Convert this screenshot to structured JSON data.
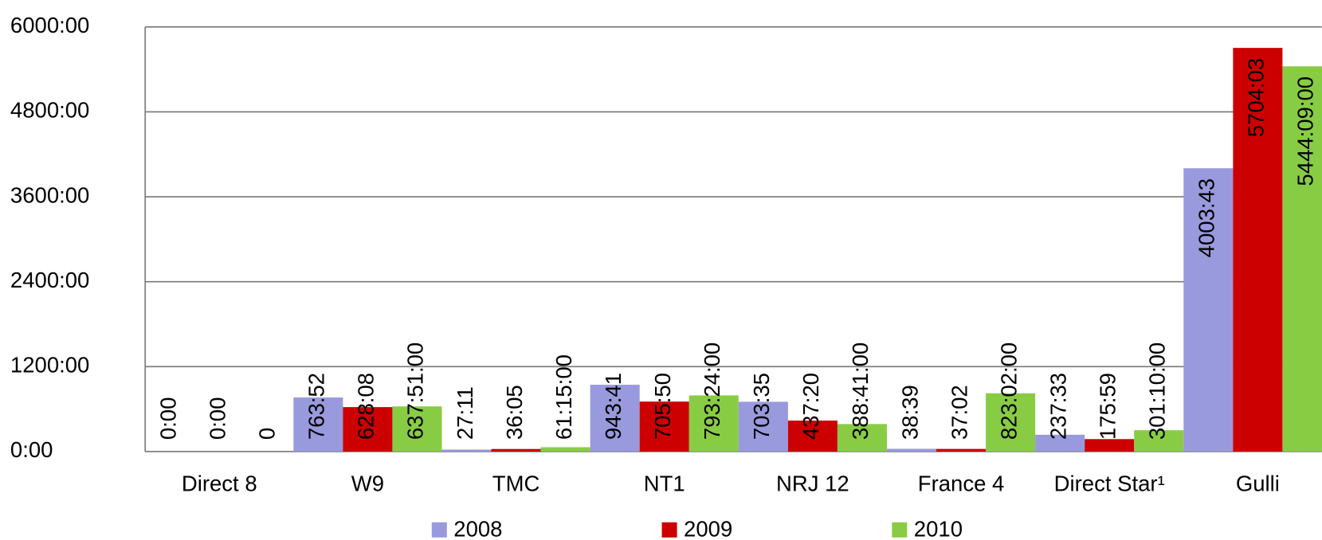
{
  "chart_data": {
    "type": "bar",
    "categories": [
      "Direct 8",
      "W9",
      "TMC",
      "NT1",
      "NRJ 12",
      "France 4",
      "Direct Star¹",
      "Gulli"
    ],
    "series": [
      {
        "name": "2008",
        "color": "#9999dd",
        "values": [
          0,
          763.867,
          27.183,
          943.683,
          703.583,
          38.65,
          237.55,
          4003.717
        ],
        "value_labels": [
          "0:00",
          "763:52",
          "27:11",
          "943:41",
          "703:35",
          "38:39",
          "237:33",
          "4003:43"
        ]
      },
      {
        "name": "2009",
        "color": "#cc0000",
        "values": [
          0,
          628.133,
          36.083,
          705.833,
          437.333,
          37.033,
          175.983,
          5704.05
        ],
        "value_labels": [
          "0:00",
          "628:08",
          "36:05",
          "705:50",
          "437:20",
          "37:02",
          "175:59",
          "5704:03"
        ]
      },
      {
        "name": "2010",
        "color": "#88cc44",
        "values": [
          0,
          637.85,
          61.25,
          793.4,
          388.683,
          823.033,
          301.167,
          5444.15
        ],
        "value_labels": [
          "0",
          "637:51:00",
          "61:15:00",
          "793:24:00",
          "388:41:00",
          "823:02:00",
          "301:10:00",
          "5444:09:00"
        ]
      }
    ],
    "ylim": [
      0,
      6000
    ],
    "yticks": [
      {
        "value": 0,
        "label": "0:00"
      },
      {
        "value": 1200,
        "label": "1200:00"
      },
      {
        "value": 2400,
        "label": "2400:00"
      },
      {
        "value": 3600,
        "label": "3600:00"
      },
      {
        "value": 4800,
        "label": "4800:00"
      },
      {
        "value": 6000,
        "label": "6000:00"
      }
    ],
    "grid": true,
    "legend": "bottom"
  }
}
